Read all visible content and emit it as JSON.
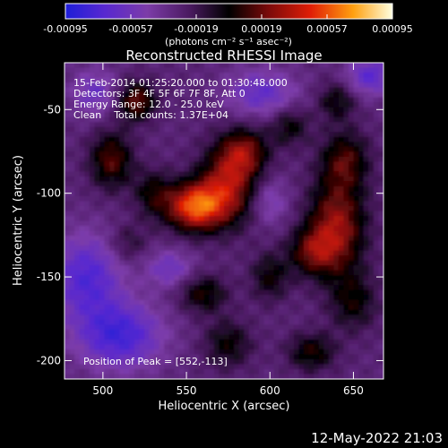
{
  "chart_data": {
    "type": "heatmap",
    "title": "Reconstructed RHESSI Image",
    "xlabel": "Heliocentric X (arcsec)",
    "ylabel": "Heliocentric Y (arcsec)",
    "xlim": [
      477,
      668
    ],
    "ylim": [
      -211,
      -22
    ],
    "x_ticks": [
      500,
      550,
      600,
      650
    ],
    "y_ticks": [
      -50,
      -100,
      -150,
      -200
    ],
    "colorbar": {
      "min": -0.00095,
      "max": 0.00095,
      "tick_values": [
        -0.00095,
        -0.00057,
        -0.00019,
        0.00019,
        0.00057,
        0.00095
      ],
      "tick_labels": [
        "-0.00095",
        "-0.00057",
        "-0.00019",
        "0.00019",
        "0.00057",
        "0.00095"
      ],
      "unit_label": "(photons cm⁻² s⁻¹ asec⁻²)"
    },
    "annotations": {
      "time_range": "15-Feb-2014 01:25:20.000 to 01:30:48.000",
      "detectors": "Detectors: 3F 4F 5F 6F 7F 8F, Att 0",
      "energy_range": "Energy Range: 12.0 - 25.0 keV",
      "method": "Clean    Total counts: 1.37E+04",
      "peak": "Position of Peak = [552,-113]"
    },
    "peak": [
      552,
      -113
    ],
    "sources": [
      {
        "x": 555,
        "y": -108,
        "flux": 0.00085,
        "sx": 12,
        "sy": 10
      },
      {
        "x": 575,
        "y": -95,
        "flux": 0.0006,
        "sx": 12,
        "sy": 16
      },
      {
        "x": 585,
        "y": -75,
        "flux": 0.00045,
        "sx": 10,
        "sy": 10
      },
      {
        "x": 520,
        "y": -45,
        "flux": 0.0005,
        "sx": 8,
        "sy": 8
      },
      {
        "x": 505,
        "y": -80,
        "flux": 0.00045,
        "sx": 9,
        "sy": 12
      },
      {
        "x": 530,
        "y": -100,
        "flux": 0.0003,
        "sx": 8,
        "sy": 10
      },
      {
        "x": 640,
        "y": -120,
        "flux": 0.0006,
        "sx": 12,
        "sy": 20
      },
      {
        "x": 625,
        "y": -135,
        "flux": 0.0004,
        "sx": 10,
        "sy": 10
      },
      {
        "x": 645,
        "y": -80,
        "flux": 0.0004,
        "sx": 10,
        "sy": 12
      },
      {
        "x": 612,
        "y": -60,
        "flux": 0.0003,
        "sx": 8,
        "sy": 8
      },
      {
        "x": 640,
        "y": -45,
        "flux": 0.0003,
        "sx": 8,
        "sy": 8
      },
      {
        "x": 560,
        "y": -160,
        "flux": 0.00035,
        "sx": 10,
        "sy": 8
      },
      {
        "x": 575,
        "y": -190,
        "flux": 0.0003,
        "sx": 10,
        "sy": 10
      },
      {
        "x": 600,
        "y": -150,
        "flux": 0.0003,
        "sx": 8,
        "sy": 10
      },
      {
        "x": 650,
        "y": -165,
        "flux": 0.0003,
        "sx": 10,
        "sy": 12
      },
      {
        "x": 625,
        "y": -195,
        "flux": 0.00035,
        "sx": 10,
        "sy": 8
      },
      {
        "x": 515,
        "y": -130,
        "flux": 0.0002,
        "sx": 8,
        "sy": 8
      },
      {
        "x": 490,
        "y": -150,
        "flux": -0.00045,
        "sx": 15,
        "sy": 18
      },
      {
        "x": 510,
        "y": -185,
        "flux": -0.0005,
        "sx": 18,
        "sy": 14
      },
      {
        "x": 595,
        "y": -40,
        "flux": -0.00035,
        "sx": 15,
        "sy": 10
      },
      {
        "x": 660,
        "y": -30,
        "flux": -0.0004,
        "sx": 10,
        "sy": 8
      },
      {
        "x": 495,
        "y": -40,
        "flux": -0.0003,
        "sx": 10,
        "sy": 10
      },
      {
        "x": 540,
        "y": -145,
        "flux": -0.0003,
        "sx": 10,
        "sy": 8
      },
      {
        "x": 600,
        "y": -105,
        "flux": -0.00025,
        "sx": 8,
        "sy": 10
      }
    ],
    "grid": false,
    "colormap": "rainbow-blue-purple-red-yellow-white"
  },
  "footer": {
    "timestamp": "12-May-2022 21:03"
  }
}
